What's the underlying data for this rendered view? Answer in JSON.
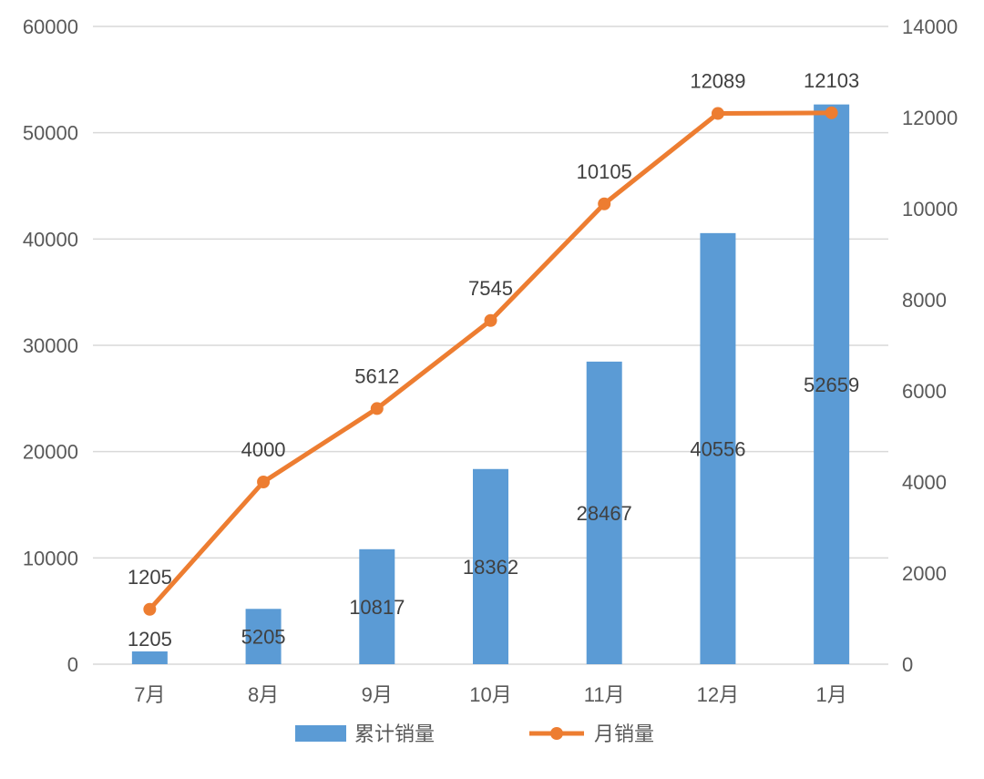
{
  "chart_data": {
    "type": "bar",
    "categories": [
      "7月",
      "8月",
      "9月",
      "10月",
      "11月",
      "12月",
      "1月"
    ],
    "series": [
      {
        "name": "累计销量",
        "type": "bar",
        "axis": "left",
        "color": "#5b9bd5",
        "values": [
          1205,
          5205,
          10817,
          18362,
          28467,
          40556,
          52659
        ]
      },
      {
        "name": "月销量",
        "type": "line",
        "axis": "right",
        "color": "#ed7d31",
        "values": [
          1205,
          4000,
          5612,
          7545,
          10105,
          12089,
          12103
        ]
      }
    ],
    "y_left": {
      "ylim": [
        0,
        60000
      ],
      "ticks": [
        "0",
        "10000",
        "20000",
        "30000",
        "40000",
        "50000",
        "60000"
      ]
    },
    "y_right": {
      "ylim": [
        0,
        14000
      ],
      "ticks": [
        "0",
        "2000",
        "4000",
        "6000",
        "8000",
        "10000",
        "12000",
        "14000"
      ]
    },
    "title": "",
    "xlabel": "",
    "ylabel": "",
    "grid": true,
    "legend": "bottom"
  }
}
